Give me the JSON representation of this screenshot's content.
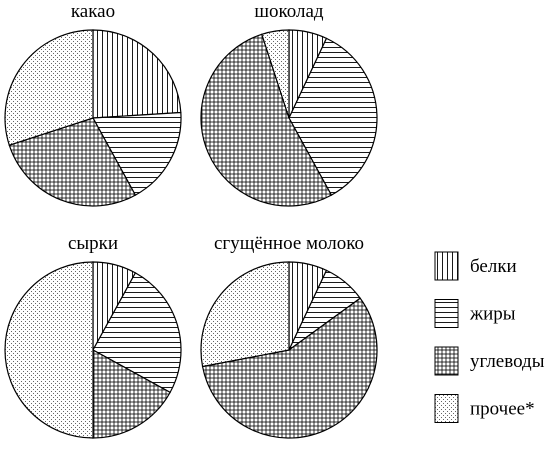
{
  "chart_data": [
    {
      "type": "pie",
      "title": "какао",
      "values": [
        24,
        18,
        28,
        30
      ]
    },
    {
      "type": "pie",
      "title": "шоколад",
      "values": [
        7,
        35,
        53,
        5
      ]
    },
    {
      "type": "pie",
      "title": "сырки",
      "values": [
        8,
        25,
        17,
        50
      ]
    },
    {
      "type": "pie",
      "title": "сгущённое молоко",
      "values": [
        7,
        8,
        57,
        28
      ]
    }
  ],
  "legend": {
    "categories": [
      "белки",
      "жиры",
      "углеводы",
      "прочее*"
    ],
    "patterns": [
      "vertical",
      "horizontal",
      "grid",
      "dots"
    ]
  }
}
